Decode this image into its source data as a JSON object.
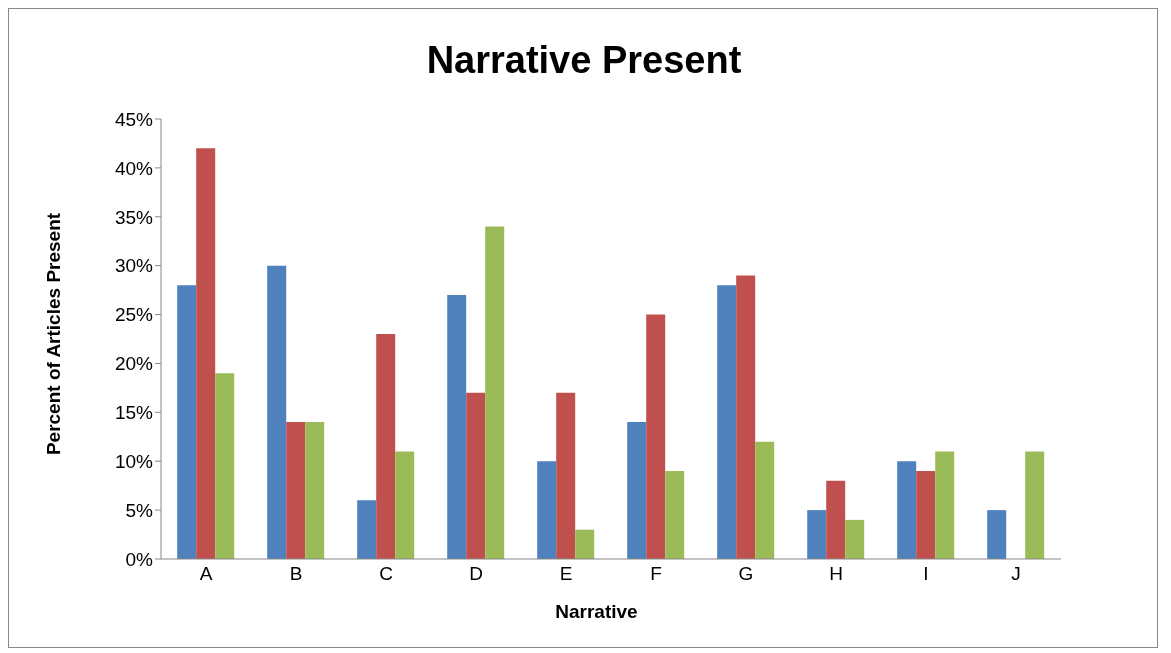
{
  "chart_data": {
    "type": "bar",
    "title": "Narrative Present",
    "xlabel": "Narrative",
    "ylabel": "Percent of Articles Present",
    "categories": [
      "A",
      "B",
      "C",
      "D",
      "E",
      "F",
      "G",
      "H",
      "I",
      "J"
    ],
    "series": [
      {
        "color": "#4f81bd",
        "values": [
          28,
          30,
          6,
          27,
          10,
          14,
          28,
          5,
          10,
          5
        ]
      },
      {
        "color": "#c0504d",
        "values": [
          42,
          14,
          23,
          17,
          17,
          25,
          29,
          8,
          9,
          null
        ]
      },
      {
        "color": "#9bbb59",
        "values": [
          19,
          14,
          11,
          34,
          3,
          9,
          12,
          4,
          11,
          11
        ]
      }
    ],
    "ylim": [
      0,
      45
    ],
    "yticks": [
      {
        "value": 0,
        "label": "0%"
      },
      {
        "value": 5,
        "label": "5%"
      },
      {
        "value": 10,
        "label": "10%"
      },
      {
        "value": 15,
        "label": "15%"
      },
      {
        "value": 20,
        "label": "20%"
      },
      {
        "value": 25,
        "label": "25%"
      },
      {
        "value": 30,
        "label": "30%"
      },
      {
        "value": 35,
        "label": "35%"
      },
      {
        "value": 40,
        "label": "40%"
      },
      {
        "value": 45,
        "label": "45%"
      }
    ],
    "grid": false,
    "legend": false
  }
}
